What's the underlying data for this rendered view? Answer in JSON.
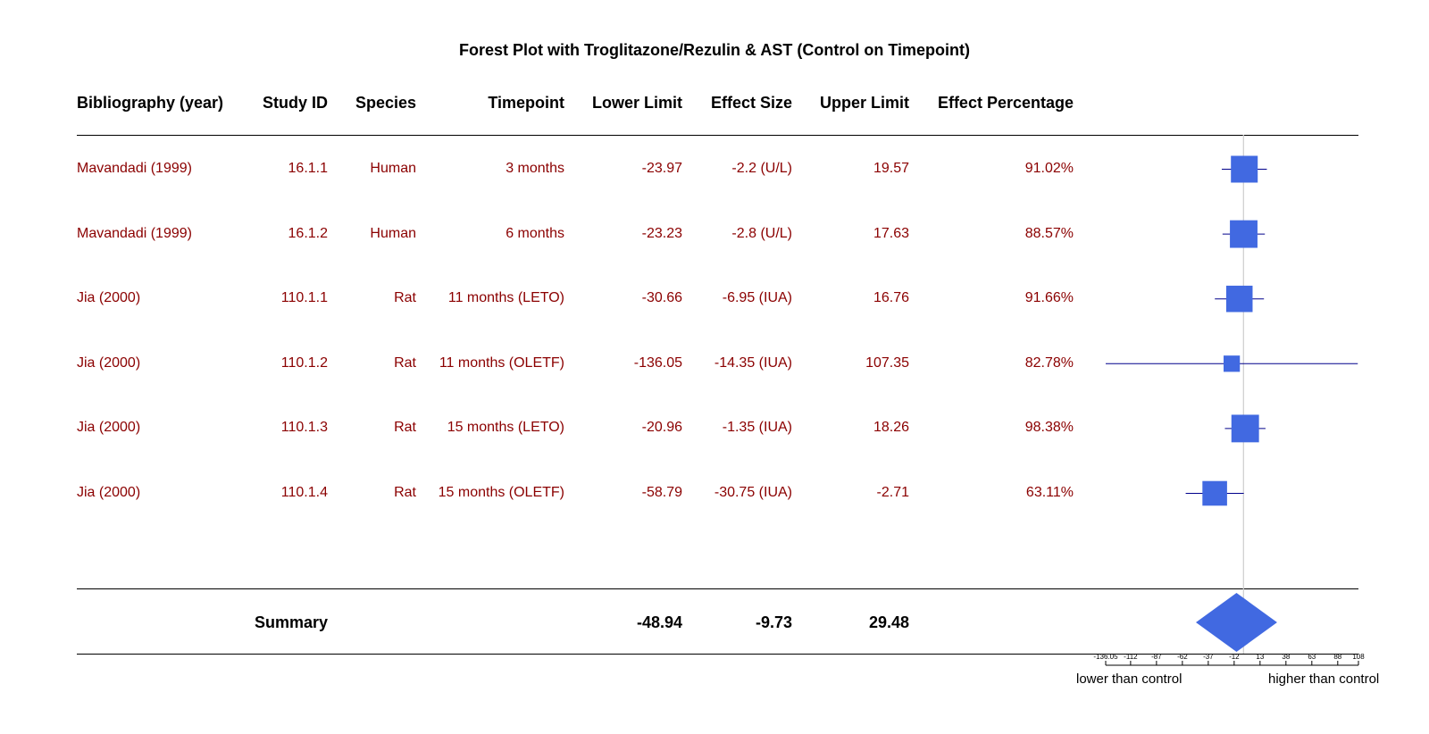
{
  "chart_data": {
    "type": "forest",
    "title": "Forest Plot with Troglitazone/Rezulin & AST (Control on Timepoint)",
    "columns": [
      "Bibliography (year)",
      "Study ID",
      "Species",
      "Timepoint",
      "Lower Limit",
      "Effect Size",
      "Upper Limit",
      "Effect Percentage"
    ],
    "rows": [
      {
        "bib": "Mavandadi (1999)",
        "study_id": "16.1.1",
        "species": "Human",
        "timepoint": "3 months",
        "lower": -23.97,
        "effect": -2.2,
        "upper": 19.57,
        "lower_txt": "-23.97",
        "effect_txt": "-2.2 (U/L)",
        "upper_txt": "19.57",
        "pct_txt": "91.02%",
        "weight": 1.0
      },
      {
        "bib": "Mavandadi (1999)",
        "study_id": "16.1.2",
        "species": "Human",
        "timepoint": "6 months",
        "lower": -23.23,
        "effect": -2.8,
        "upper": 17.63,
        "lower_txt": "-23.23",
        "effect_txt": "-2.8 (U/L)",
        "upper_txt": "17.63",
        "pct_txt": "88.57%",
        "weight": 1.1
      },
      {
        "bib": "Jia (2000)",
        "study_id": "110.1.1",
        "species": "Rat",
        "timepoint": "11 months (LETO)",
        "lower": -30.66,
        "effect": -6.95,
        "upper": 16.76,
        "lower_txt": "-30.66",
        "effect_txt": "-6.95 (IUA)",
        "upper_txt": "16.76",
        "pct_txt": "91.66%",
        "weight": 0.95
      },
      {
        "bib": "Jia (2000)",
        "study_id": "110.1.2",
        "species": "Rat",
        "timepoint": "11 months (OLETF)",
        "lower": -136.05,
        "effect": -14.35,
        "upper": 107.35,
        "lower_txt": "-136.05",
        "effect_txt": "-14.35 (IUA)",
        "upper_txt": "107.35",
        "pct_txt": "82.78%",
        "weight": 0.12
      },
      {
        "bib": "Jia (2000)",
        "study_id": "110.1.3",
        "species": "Rat",
        "timepoint": "15 months (LETO)",
        "lower": -20.96,
        "effect": -1.35,
        "upper": 18.26,
        "lower_txt": "-20.96",
        "effect_txt": "-1.35 (IUA)",
        "upper_txt": "18.26",
        "pct_txt": "98.38%",
        "weight": 1.1
      },
      {
        "bib": "Jia (2000)",
        "study_id": "110.1.4",
        "species": "Rat",
        "timepoint": "15 months (OLETF)",
        "lower": -58.79,
        "effect": -30.75,
        "upper": -2.71,
        "lower_txt": "-58.79",
        "effect_txt": "-30.75 (IUA)",
        "upper_txt": "-2.71",
        "pct_txt": "63.11%",
        "weight": 0.75
      }
    ],
    "summary": {
      "label": "Summary",
      "lower": -48.94,
      "effect": -9.73,
      "upper": 29.48,
      "lower_txt": "-48.94",
      "effect_txt": "-9.73",
      "upper_txt": "29.48"
    },
    "xlim": [
      -136.05,
      108
    ],
    "xticks": [
      -136.05,
      -112,
      -87,
      -62,
      -37,
      -12,
      13,
      38,
      63,
      88,
      108
    ],
    "xtick_labels": [
      "-136.05",
      "-112",
      "-87",
      "-62",
      "-37",
      "-12",
      "13",
      "38",
      "63",
      "88",
      "108"
    ],
    "reference_line": -3,
    "xlabel_left": "lower than control",
    "xlabel_right": "higher than control",
    "colors": {
      "point": "#4169e1",
      "ci_line": "#00008b",
      "text": "#8b0000",
      "reference": "#cccccc"
    }
  }
}
